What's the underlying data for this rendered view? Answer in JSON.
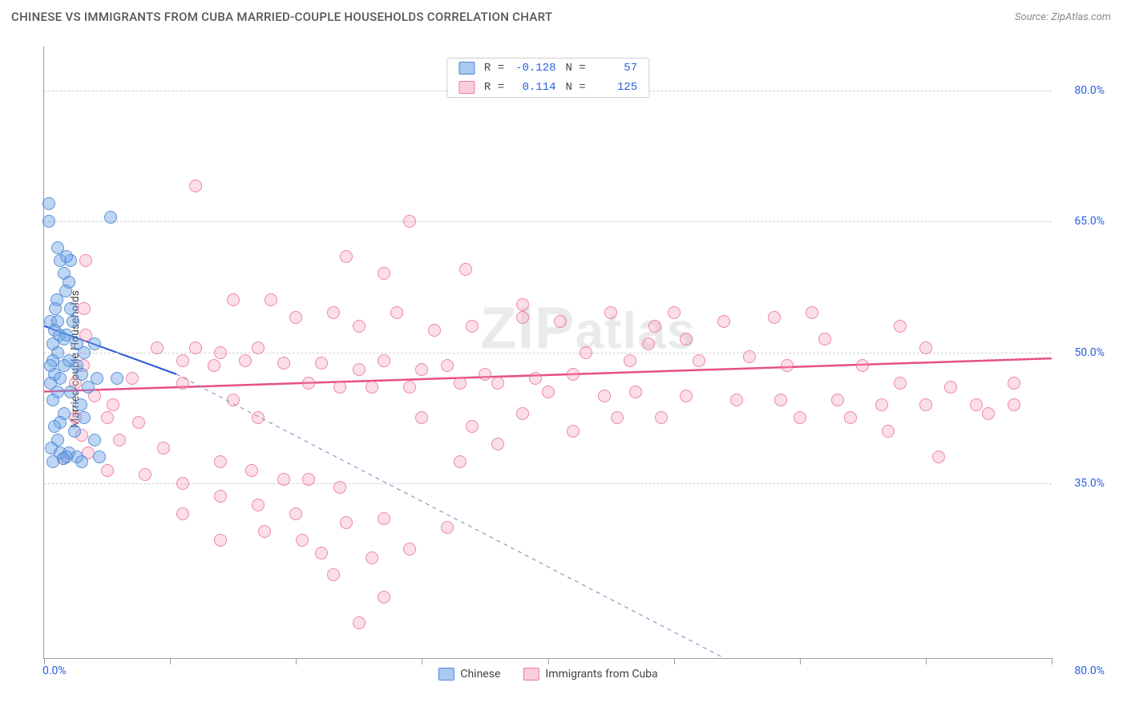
{
  "header": {
    "title": "CHINESE VS IMMIGRANTS FROM CUBA MARRIED-COUPLE HOUSEHOLDS CORRELATION CHART",
    "source": "Source: ZipAtlas.com"
  },
  "chart": {
    "type": "scatter",
    "ylabel": "Married-couple Households",
    "xlim": [
      0,
      80
    ],
    "ylim": [
      15,
      85
    ],
    "x_ticks": [
      0,
      10,
      20,
      30,
      40,
      50,
      60,
      70,
      80
    ],
    "x_min_label": "0.0%",
    "x_max_label": "80.0%",
    "y_gridlines": [
      35,
      50,
      65,
      80
    ],
    "y_labels": [
      "35.0%",
      "50.0%",
      "65.0%",
      "80.0%"
    ],
    "background_color": "#ffffff",
    "grid_color": "#d0d0d0",
    "axis_color": "#9aa0a6",
    "series": {
      "chinese": {
        "label": "Chinese",
        "color_fill": "rgba(110,165,230,0.45)",
        "color_stroke": "rgba(70,130,210,0.8)",
        "R": "-0.128",
        "N": "57",
        "trend": {
          "x1": 0,
          "y1": 53,
          "x2": 10.5,
          "y2": 47.5,
          "color": "#2b57d9",
          "width": 2,
          "dash": "none"
        },
        "trend_ext": {
          "x1": 10.5,
          "y1": 47.5,
          "x2": 54,
          "y2": 15,
          "color": "#6f8bb8",
          "width": 1,
          "dash": "5,5"
        },
        "points": [
          [
            0.4,
            67
          ],
          [
            0.4,
            65
          ],
          [
            1.1,
            62
          ],
          [
            2.1,
            60.5
          ],
          [
            1.3,
            60.5
          ],
          [
            1.8,
            61
          ],
          [
            5.3,
            65.5
          ],
          [
            1.6,
            59
          ],
          [
            2.0,
            58
          ],
          [
            1.7,
            57
          ],
          [
            1.0,
            56
          ],
          [
            0.9,
            55
          ],
          [
            2.1,
            55
          ],
          [
            0.5,
            53.5
          ],
          [
            1.1,
            53.5
          ],
          [
            2.3,
            53.5
          ],
          [
            0.8,
            52.5
          ],
          [
            1.8,
            52
          ],
          [
            1.2,
            52
          ],
          [
            0.7,
            51
          ],
          [
            1.6,
            51.5
          ],
          [
            2.6,
            51
          ],
          [
            4.0,
            51
          ],
          [
            1.1,
            50
          ],
          [
            3.2,
            50
          ],
          [
            0.7,
            49
          ],
          [
            2.0,
            49
          ],
          [
            0.5,
            48.5
          ],
          [
            2.6,
            48.5
          ],
          [
            1.6,
            48.5
          ],
          [
            0.8,
            47.5
          ],
          [
            3.0,
            47.5
          ],
          [
            4.2,
            47
          ],
          [
            1.3,
            47
          ],
          [
            0.5,
            46.5
          ],
          [
            3.5,
            46
          ],
          [
            1.1,
            45.5
          ],
          [
            2.1,
            45.5
          ],
          [
            0.7,
            44.5
          ],
          [
            2.9,
            44
          ],
          [
            1.6,
            43
          ],
          [
            3.2,
            42.5
          ],
          [
            1.3,
            42
          ],
          [
            0.8,
            41.5
          ],
          [
            2.4,
            41
          ],
          [
            4.0,
            40
          ],
          [
            1.1,
            40
          ],
          [
            0.6,
            39
          ],
          [
            2.0,
            38.5
          ],
          [
            1.3,
            38.5
          ],
          [
            2.6,
            38
          ],
          [
            4.4,
            38
          ],
          [
            1.8,
            38
          ],
          [
            1.5,
            37.8
          ],
          [
            0.7,
            37.5
          ],
          [
            3.0,
            37.5
          ],
          [
            5.8,
            47
          ]
        ]
      },
      "cuba": {
        "label": "Immigrants from Cuba",
        "color_fill": "rgba(245,160,185,0.35)",
        "color_stroke": "rgba(230,100,140,0.7)",
        "R": "0.114",
        "N": "125",
        "trend": {
          "x1": 0,
          "y1": 45.5,
          "x2": 80,
          "y2": 49.3,
          "color": "#e84f88",
          "width": 2.5,
          "dash": "none"
        },
        "points": [
          [
            12,
            69
          ],
          [
            29,
            65
          ],
          [
            24,
            61
          ],
          [
            27,
            59
          ],
          [
            33.5,
            59.5
          ],
          [
            15,
            56
          ],
          [
            18,
            56
          ],
          [
            20,
            54
          ],
          [
            23,
            54.5
          ],
          [
            25,
            53
          ],
          [
            28,
            54.5
          ],
          [
            31,
            52.5
          ],
          [
            34,
            53
          ],
          [
            38,
            54
          ],
          [
            38,
            55.5
          ],
          [
            41,
            53.5
          ],
          [
            45,
            54.5
          ],
          [
            48.5,
            53
          ],
          [
            50,
            54.5
          ],
          [
            54,
            53.5
          ],
          [
            58,
            54
          ],
          [
            61,
            54.5
          ],
          [
            62,
            51.5
          ],
          [
            68,
            53
          ],
          [
            48,
            51
          ],
          [
            51,
            51.5
          ],
          [
            9,
            50.5
          ],
          [
            12,
            50.5
          ],
          [
            14,
            50
          ],
          [
            17,
            50.5
          ],
          [
            11,
            49
          ],
          [
            13.5,
            48.5
          ],
          [
            16,
            49
          ],
          [
            19,
            48.8
          ],
          [
            22,
            48.8
          ],
          [
            25,
            48
          ],
          [
            27,
            49
          ],
          [
            30,
            48
          ],
          [
            32,
            48.5
          ],
          [
            35,
            47.5
          ],
          [
            39,
            47
          ],
          [
            42,
            47.5
          ],
          [
            7,
            47
          ],
          [
            11,
            46.5
          ],
          [
            21,
            46.5
          ],
          [
            23.5,
            46
          ],
          [
            26,
            46
          ],
          [
            15,
            44.5
          ],
          [
            29,
            46
          ],
          [
            33,
            46.5
          ],
          [
            36,
            46.5
          ],
          [
            40,
            45.5
          ],
          [
            44.5,
            45
          ],
          [
            47,
            45.5
          ],
          [
            51,
            45
          ],
          [
            55,
            44.5
          ],
          [
            58.5,
            44.5
          ],
          [
            63,
            44.5
          ],
          [
            66.5,
            44
          ],
          [
            70,
            44
          ],
          [
            74,
            44
          ],
          [
            77,
            44
          ],
          [
            77,
            46.5
          ],
          [
            72,
            46
          ],
          [
            68,
            46.5
          ],
          [
            65,
            48.5
          ],
          [
            70,
            50.5
          ],
          [
            59,
            48.5
          ],
          [
            56,
            49.5
          ],
          [
            52,
            49
          ],
          [
            2.5,
            46.5
          ],
          [
            4,
            45
          ],
          [
            5.5,
            44
          ],
          [
            2.5,
            42.5
          ],
          [
            5,
            42.5
          ],
          [
            7.5,
            42
          ],
          [
            6,
            40
          ],
          [
            9.5,
            39
          ],
          [
            3,
            40.5
          ],
          [
            14,
            37.5
          ],
          [
            16.5,
            36.5
          ],
          [
            8,
            36
          ],
          [
            11,
            35
          ],
          [
            5,
            36.5
          ],
          [
            19,
            35.5
          ],
          [
            21,
            35.5
          ],
          [
            23.5,
            34.5
          ],
          [
            14,
            33.5
          ],
          [
            17,
            32.5
          ],
          [
            11,
            31.5
          ],
          [
            20,
            31.5
          ],
          [
            27,
            31
          ],
          [
            24,
            30.5
          ],
          [
            17.5,
            29.5
          ],
          [
            14,
            28.5
          ],
          [
            20.5,
            28.5
          ],
          [
            32,
            30
          ],
          [
            22,
            27
          ],
          [
            26,
            26.5
          ],
          [
            29,
            27.5
          ],
          [
            23,
            24.5
          ],
          [
            27,
            22
          ],
          [
            25,
            19
          ],
          [
            71,
            38
          ],
          [
            75,
            43
          ],
          [
            67,
            41
          ],
          [
            64,
            42.5
          ],
          [
            60,
            42.5
          ],
          [
            49,
            42.5
          ],
          [
            45.5,
            42.5
          ],
          [
            30,
            42.5
          ],
          [
            34,
            41.5
          ],
          [
            38,
            43
          ],
          [
            42,
            41
          ],
          [
            36,
            39.5
          ],
          [
            33,
            37.5
          ],
          [
            17,
            42.5
          ],
          [
            3.5,
            38.5
          ],
          [
            1.5,
            37.8
          ],
          [
            43,
            50
          ],
          [
            46.5,
            49
          ],
          [
            3.3,
            60.5
          ],
          [
            3.2,
            55
          ],
          [
            3.3,
            52
          ],
          [
            3.1,
            48.5
          ]
        ]
      }
    },
    "watermark": "ZIPatlas"
  },
  "legend_top": {
    "rows": [
      {
        "swatch": "blue",
        "R_label": "R = ",
        "R": "-0.128",
        "N_label": "N = ",
        "N": "57"
      },
      {
        "swatch": "pink",
        "R_label": "R = ",
        "R": "0.114",
        "N_label": "N = ",
        "N": "125"
      }
    ]
  },
  "legend_bottom": {
    "items": [
      {
        "swatch": "blue",
        "label": "Chinese"
      },
      {
        "swatch": "pink",
        "label": "Immigrants from Cuba"
      }
    ]
  }
}
